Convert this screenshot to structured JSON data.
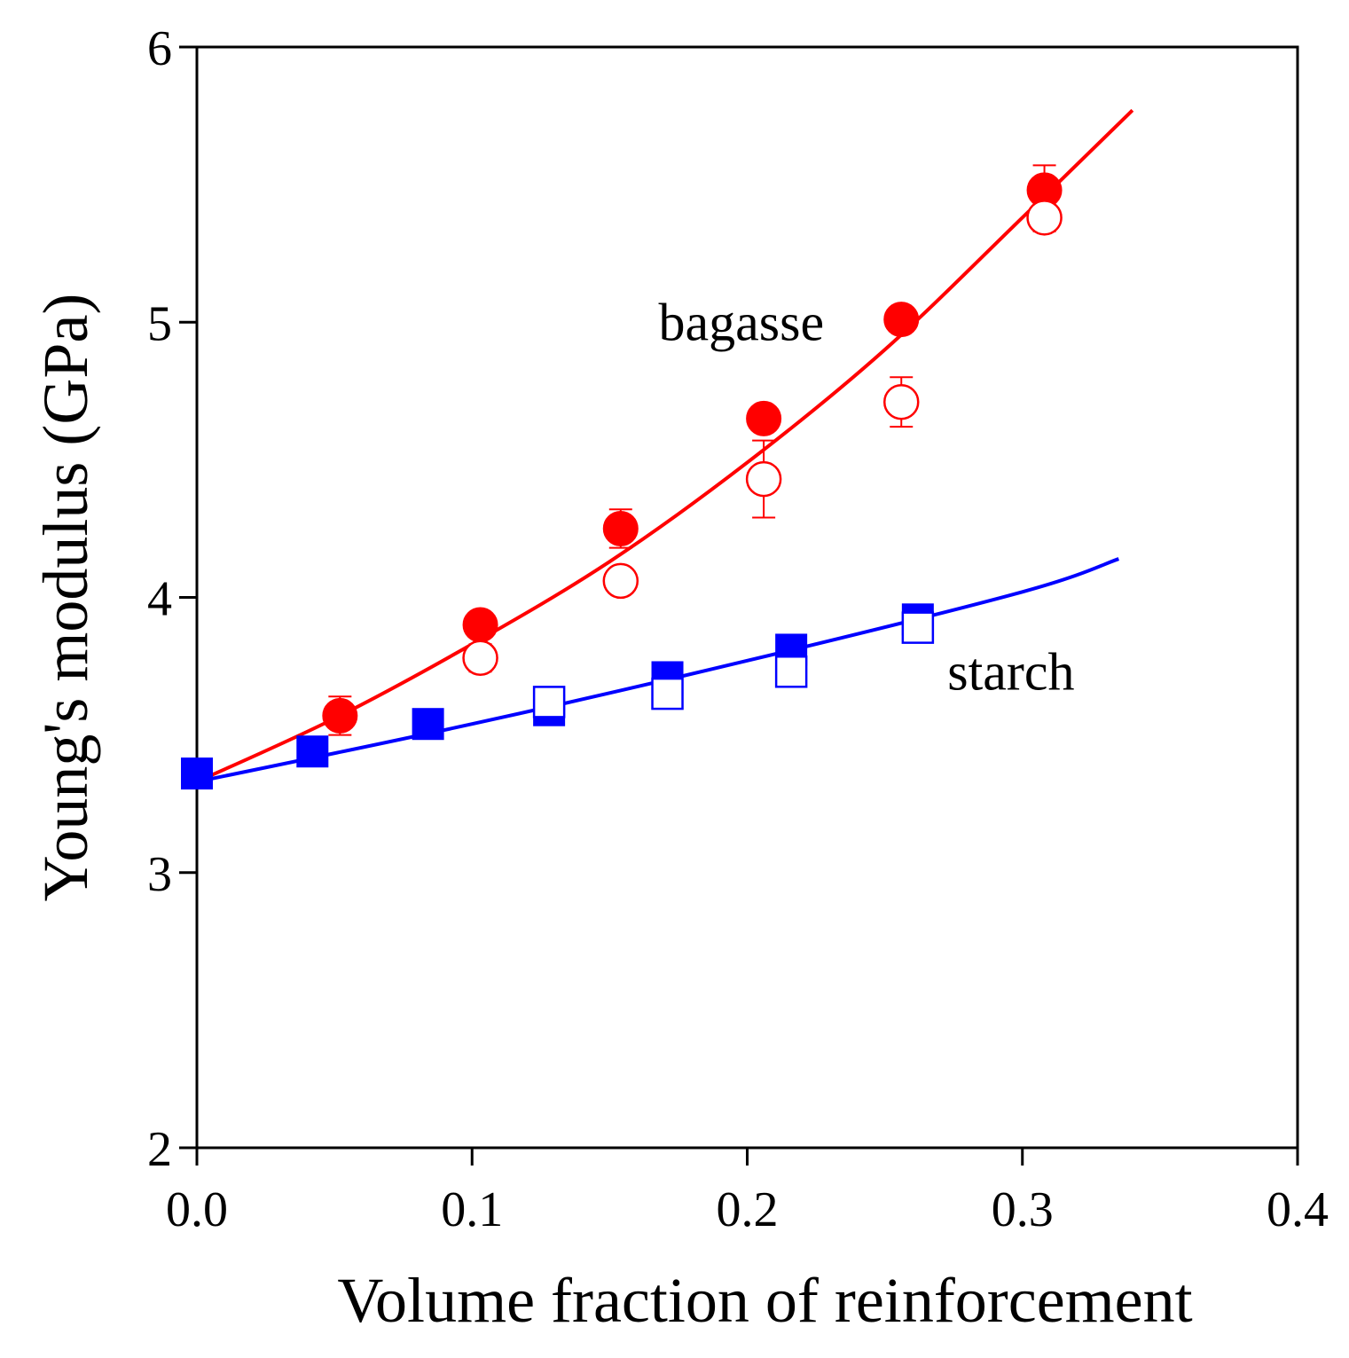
{
  "chart_data": {
    "type": "scatter",
    "title": "",
    "xlabel": "Volume fraction of reinforcement",
    "ylabel": "Young's modulus (GPa)",
    "xlim": [
      0.0,
      0.4
    ],
    "ylim": [
      2,
      6
    ],
    "xticks": [
      "0.0",
      "0.1",
      "0.2",
      "0.3",
      "0.4"
    ],
    "yticks": [
      "2",
      "3",
      "4",
      "5",
      "6"
    ],
    "grid": false,
    "legend": "none",
    "annotations": [
      {
        "text": "bagasse",
        "x": 0.2,
        "y": 5.0
      },
      {
        "text": "starch",
        "x": 0.305,
        "y": 3.73
      }
    ],
    "series": [
      {
        "group": "bagasse",
        "marker": "filled-circle",
        "color": "#ff0000",
        "x": [
          0.052,
          0.103,
          0.154,
          0.206,
          0.256,
          0.308
        ],
        "y": [
          3.57,
          3.9,
          4.25,
          4.65,
          5.01,
          5.48
        ],
        "err": [
          0.07,
          0.0,
          0.07,
          0.0,
          0.0,
          0.09
        ]
      },
      {
        "group": "bagasse",
        "marker": "open-circle",
        "color": "#ff0000",
        "x": [
          0.103,
          0.154,
          0.206,
          0.256,
          0.308
        ],
        "y": [
          3.78,
          4.06,
          4.43,
          4.71,
          5.38
        ],
        "err": [
          0.05,
          0.04,
          0.14,
          0.09,
          0.05
        ]
      },
      {
        "group": "starch",
        "marker": "filled-square",
        "color": "#0000ff",
        "x": [
          0.0,
          0.042,
          0.084,
          0.128,
          0.171,
          0.216,
          0.262
        ],
        "y": [
          3.36,
          3.44,
          3.54,
          3.59,
          3.71,
          3.81,
          3.92
        ],
        "err": [
          0,
          0,
          0,
          0,
          0,
          0,
          0
        ]
      },
      {
        "group": "starch",
        "marker": "open-square",
        "color": "#0000ff",
        "x": [
          0.128,
          0.171,
          0.216,
          0.262
        ],
        "y": [
          3.62,
          3.65,
          3.73,
          3.89
        ],
        "err": [
          0.03,
          0.03,
          0.0,
          0.0
        ]
      }
    ],
    "fits": [
      {
        "group": "bagasse",
        "color": "#ff0000",
        "x": [
          0.0,
          0.05,
          0.1,
          0.15,
          0.2,
          0.25,
          0.3,
          0.34
        ],
        "y": [
          3.33,
          3.56,
          3.83,
          4.13,
          4.49,
          4.9,
          5.38,
          5.77
        ]
      },
      {
        "group": "starch",
        "color": "#0000ff",
        "x": [
          0.0,
          0.1,
          0.2,
          0.3,
          0.335
        ],
        "y": [
          3.33,
          3.54,
          3.77,
          4.02,
          4.14
        ]
      }
    ]
  }
}
